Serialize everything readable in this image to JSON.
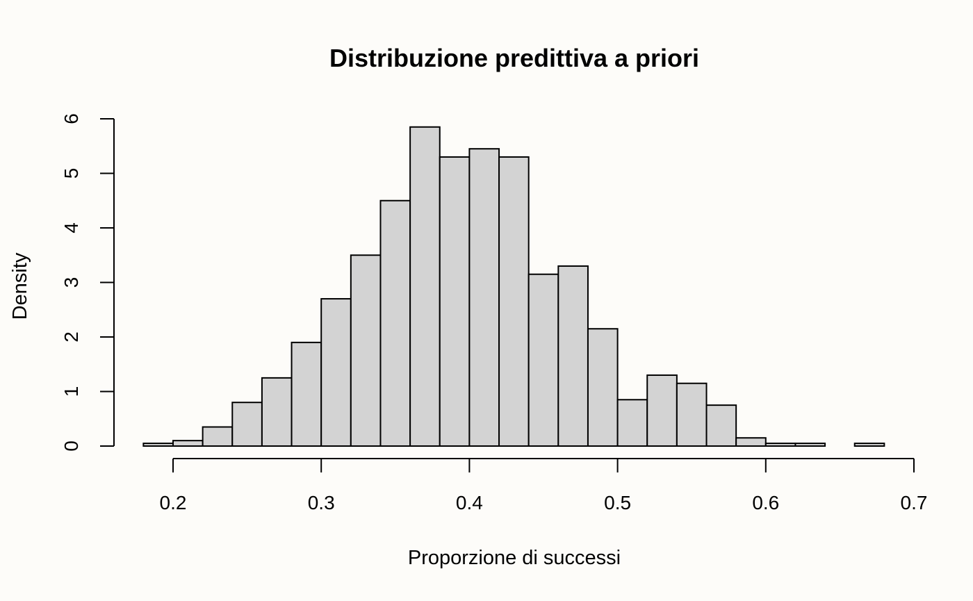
{
  "chart_data": {
    "type": "bar",
    "title": "Distribuzione predittiva a priori",
    "xlabel": "Proporzione di successi",
    "ylabel": "Density",
    "xlim": [
      0.18,
      0.7
    ],
    "ylim": [
      0,
      6
    ],
    "x_ticks": [
      0.2,
      0.3,
      0.4,
      0.5,
      0.6,
      0.7
    ],
    "x_tick_labels": [
      "0.2",
      "0.3",
      "0.4",
      "0.5",
      "0.6",
      "0.7"
    ],
    "y_ticks": [
      0,
      1,
      2,
      3,
      4,
      5,
      6
    ],
    "y_tick_labels": [
      "0",
      "1",
      "2",
      "3",
      "4",
      "5",
      "6"
    ],
    "bin_width": 0.02,
    "bin_starts": [
      0.18,
      0.2,
      0.22,
      0.24,
      0.26,
      0.28,
      0.3,
      0.32,
      0.34,
      0.36,
      0.38,
      0.4,
      0.42,
      0.44,
      0.46,
      0.48,
      0.5,
      0.52,
      0.54,
      0.56,
      0.58,
      0.6,
      0.62,
      0.64,
      0.66
    ],
    "values": [
      0.05,
      0.1,
      0.35,
      0.8,
      1.25,
      1.9,
      2.7,
      3.5,
      4.5,
      5.85,
      5.3,
      5.45,
      5.3,
      3.15,
      3.3,
      2.15,
      0.85,
      1.3,
      1.15,
      0.75,
      0.15,
      0.05,
      0.05,
      0.0,
      0.05
    ],
    "bar_color": "#d3d3d3",
    "edge_color": "#000000",
    "grid": false
  }
}
